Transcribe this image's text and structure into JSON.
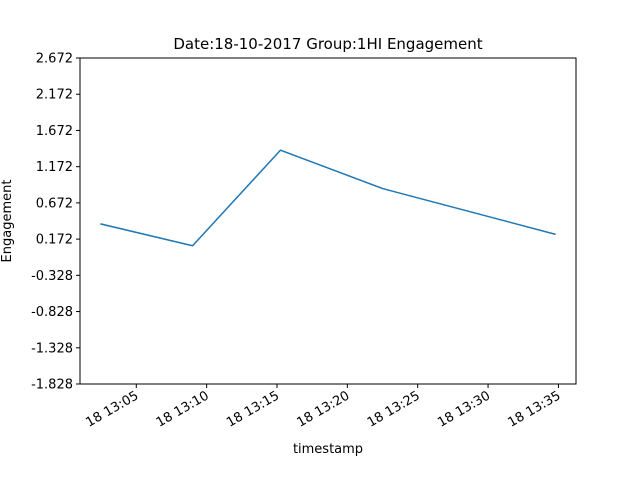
{
  "chart_data": {
    "type": "line",
    "title": "Date:18-10-2017 Group:1HI Engagement",
    "xlabel": "timestamp",
    "ylabel": "Engagement",
    "x": [
      "2017-10-18 13:02:30",
      "2017-10-18 13:09:00",
      "2017-10-18 13:15:15",
      "2017-10-18 13:22:30",
      "2017-10-18 13:34:45"
    ],
    "series": [
      {
        "values": [
          0.38,
          0.08,
          1.4,
          0.87,
          0.24
        ],
        "color": "#1f77b4"
      }
    ],
    "ylim": [
      -1.828,
      2.672
    ],
    "xlim": [
      "2017-10-18 13:01:00",
      "2017-10-18 13:36:15"
    ],
    "y_ticks": [
      -1.828,
      -1.328,
      -0.828,
      -0.328,
      0.172,
      0.672,
      1.172,
      1.672,
      2.172,
      2.672
    ],
    "y_tick_labels": [
      "-1.828",
      "-1.328",
      "-0.828",
      "-0.328",
      "0.172",
      "0.672",
      "1.172",
      "1.672",
      "2.172",
      "2.672"
    ],
    "x_ticks": [
      "2017-10-18 13:05:00",
      "2017-10-18 13:10:00",
      "2017-10-18 13:15:00",
      "2017-10-18 13:20:00",
      "2017-10-18 13:25:00",
      "2017-10-18 13:30:00",
      "2017-10-18 13:35:00"
    ],
    "x_tick_labels": [
      "18 13:05",
      "18 13:10",
      "18 13:15",
      "18 13:20",
      "18 13:25",
      "18 13:30",
      "18 13:35"
    ],
    "grid": false,
    "legend": "none"
  }
}
